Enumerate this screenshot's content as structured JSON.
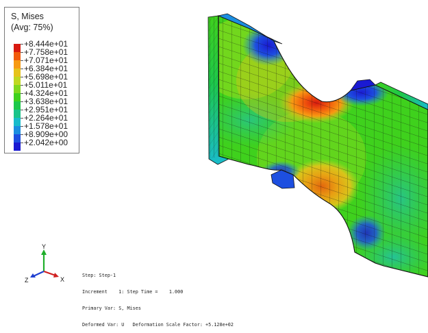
{
  "legend": {
    "title_line1": "S, Mises",
    "title_line2": "(Avg: 75%)",
    "labels": [
      "+8.444e+01",
      "+7.758e+01",
      "+7.071e+01",
      "+6.384e+01",
      "+5.698e+01",
      "+5.011e+01",
      "+4.324e+01",
      "+3.638e+01",
      "+2.951e+01",
      "+2.264e+01",
      "+1.578e+01",
      "+8.909e+00",
      "+2.042e+00"
    ],
    "colors": [
      "#d81a10",
      "#f25b0c",
      "#f79a12",
      "#e6c31a",
      "#bfd821",
      "#7fd81e",
      "#3fd11d",
      "#1dc84a",
      "#1bc48a",
      "#19bccb",
      "#1c8ee0",
      "#1d4fe0",
      "#1a1ad2"
    ]
  },
  "triad": {
    "y_label": "Y",
    "z_label": "Z",
    "x_label": "X"
  },
  "step_info": {
    "line1": "Step: Step-1",
    "line2": "Increment    1: Step Time =    1.000",
    "line3": "Primary Var: S, Mises",
    "line4": "Deformed Var: U   Deformation Scale Factor: +5.128e+02"
  }
}
